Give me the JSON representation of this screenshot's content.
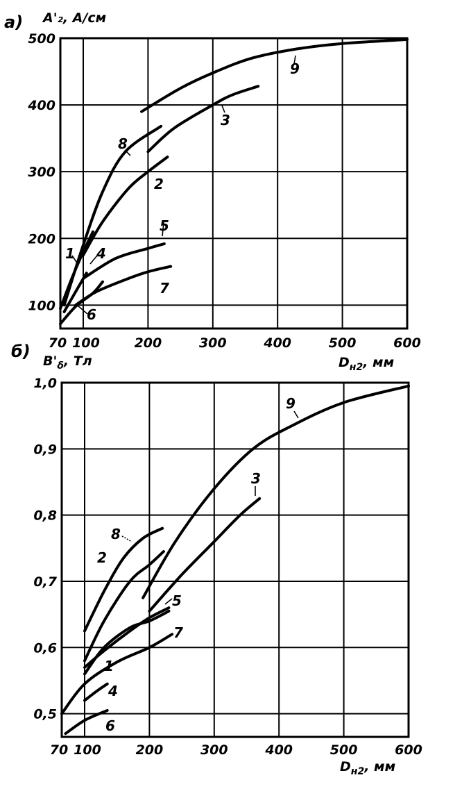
{
  "chart_data": [
    {
      "type": "line",
      "panel_label": "а)",
      "ylabel": "A'₂, А/см",
      "xlabel": "D_н2, мм",
      "xlim": [
        70,
        600
      ],
      "ylim": [
        65,
        500
      ],
      "x_ticks": [
        "70",
        "100",
        "200",
        "300",
        "400",
        "500",
        "600"
      ],
      "x_tick_values": [
        70,
        100,
        200,
        300,
        400,
        500,
        600
      ],
      "y_ticks": [
        "100",
        "200",
        "300",
        "400",
        "500"
      ],
      "y_tick_values": [
        100,
        200,
        300,
        400,
        500
      ],
      "grid": true,
      "series": [
        {
          "name": "1",
          "points": [
            [
              70,
              95
            ],
            [
              85,
              140
            ],
            [
              100,
              180
            ],
            [
              115,
              210
            ]
          ]
        },
        {
          "name": "2",
          "points": [
            [
              100,
              175
            ],
            [
              130,
              225
            ],
            [
              170,
              275
            ],
            [
              200,
              300
            ],
            [
              230,
              322
            ]
          ]
        },
        {
          "name": "3",
          "points": [
            [
              200,
              330
            ],
            [
              240,
              365
            ],
            [
              300,
              400
            ],
            [
              330,
              415
            ],
            [
              370,
              428
            ]
          ]
        },
        {
          "name": "4",
          "points": [
            [
              75,
              90
            ],
            [
              90,
              120
            ],
            [
              105,
              148
            ]
          ]
        },
        {
          "name": "5",
          "points": [
            [
              100,
              140
            ],
            [
              150,
              170
            ],
            [
              200,
              185
            ],
            [
              225,
              192
            ]
          ]
        },
        {
          "name": "6",
          "points": [
            [
              70,
              72
            ],
            [
              90,
              98
            ],
            [
              115,
              118
            ],
            [
              130,
              135
            ]
          ]
        },
        {
          "name": "7",
          "points": [
            [
              90,
              100
            ],
            [
              120,
              120
            ],
            [
              170,
              140
            ],
            [
              200,
              150
            ],
            [
              235,
              158
            ]
          ]
        },
        {
          "name": "8",
          "points": [
            [
              75,
              100
            ],
            [
              100,
              190
            ],
            [
              130,
              270
            ],
            [
              165,
              330
            ],
            [
              220,
              368
            ]
          ]
        },
        {
          "name": "9",
          "points": [
            [
              190,
              390
            ],
            [
              250,
              425
            ],
            [
              300,
              448
            ],
            [
              360,
              470
            ],
            [
              430,
              484
            ],
            [
              500,
              492
            ],
            [
              600,
              498
            ]
          ]
        }
      ],
      "annotations": [
        "1",
        "2",
        "3",
        "4",
        "5",
        "6",
        "7",
        "8",
        "9"
      ]
    },
    {
      "type": "line",
      "panel_label": "б)",
      "ylabel": "B'δ, Тл",
      "xlabel": "D_н2, мм",
      "xlim": [
        70,
        600
      ],
      "ylim": [
        0.465,
        1.0
      ],
      "x_ticks": [
        "70",
        "100",
        "200",
        "300",
        "400",
        "500",
        "600"
      ],
      "x_tick_values": [
        70,
        100,
        200,
        300,
        400,
        500,
        600
      ],
      "y_ticks": [
        "0,5",
        "0,6",
        "0,7",
        "0,8",
        "0,9",
        "1,0"
      ],
      "y_tick_values": [
        0.5,
        0.6,
        0.7,
        0.8,
        0.9,
        1.0
      ],
      "grid": true,
      "series": [
        {
          "name": "1",
          "points": [
            [
              100,
              0.57
            ],
            [
              130,
              0.595
            ],
            [
              170,
              0.625
            ],
            [
              200,
              0.645
            ],
            [
              230,
              0.66
            ]
          ]
        },
        {
          "name": "2",
          "points": [
            [
              100,
              0.58
            ],
            [
              130,
              0.64
            ],
            [
              170,
              0.7
            ],
            [
              200,
              0.725
            ],
            [
              222,
              0.745
            ]
          ]
        },
        {
          "name": "3",
          "points": [
            [
              200,
              0.655
            ],
            [
              250,
              0.71
            ],
            [
              300,
              0.76
            ],
            [
              340,
              0.8
            ],
            [
              370,
              0.825
            ]
          ]
        },
        {
          "name": "4",
          "points": [
            [
              100,
              0.52
            ],
            [
              120,
              0.535
            ],
            [
              135,
              0.545
            ]
          ]
        },
        {
          "name": "5",
          "points": [
            [
              100,
              0.56
            ],
            [
              130,
              0.6
            ],
            [
              170,
              0.63
            ],
            [
              200,
              0.64
            ],
            [
              230,
              0.655
            ]
          ]
        },
        {
          "name": "6",
          "points": [
            [
              75,
              0.47
            ],
            [
              100,
              0.49
            ],
            [
              135,
              0.505
            ]
          ]
        },
        {
          "name": "7",
          "points": [
            [
              70,
              0.5
            ],
            [
              100,
              0.545
            ],
            [
              150,
              0.578
            ],
            [
              200,
              0.6
            ],
            [
              235,
              0.62
            ]
          ]
        },
        {
          "name": "8",
          "points": [
            [
              100,
              0.625
            ],
            [
              130,
              0.685
            ],
            [
              160,
              0.735
            ],
            [
              190,
              0.765
            ],
            [
              220,
              0.78
            ]
          ]
        },
        {
          "name": "9",
          "points": [
            [
              190,
              0.675
            ],
            [
              240,
              0.76
            ],
            [
              300,
              0.84
            ],
            [
              360,
              0.9
            ],
            [
              420,
              0.935
            ],
            [
              500,
              0.97
            ],
            [
              600,
              0.995
            ]
          ]
        }
      ],
      "annotations": [
        "1",
        "2",
        "3",
        "4",
        "5",
        "6",
        "7",
        "8",
        "9"
      ]
    }
  ],
  "panel_a": {
    "label": "а)",
    "ylabel": "A'₂, А/см",
    "xlabel": "D",
    "xlabel_sub": "н2",
    "xlabel_unit": ", мм",
    "y_ticks": [
      "100",
      "200",
      "300",
      "400",
      "500"
    ],
    "x_ticks": [
      "70",
      "100",
      "200",
      "300",
      "400",
      "500",
      "600"
    ],
    "curve_labels": [
      "1",
      "2",
      "3",
      "4",
      "5",
      "6",
      "7",
      "8",
      "9"
    ]
  },
  "panel_b": {
    "label": "б)",
    "ylabel_main": "B'",
    "ylabel_sub": "δ",
    "ylabel_unit": ", Тл",
    "xlabel": "D",
    "xlabel_sub": "н2",
    "xlabel_unit": ", мм",
    "y_ticks": [
      "0,5",
      "0,6",
      "0,7",
      "0,8",
      "0,9",
      "1,0"
    ],
    "x_ticks": [
      "70",
      "100",
      "200",
      "300",
      "400",
      "500",
      "600"
    ],
    "curve_labels": [
      "1",
      "2",
      "3",
      "4",
      "5",
      "6",
      "7",
      "8",
      "9"
    ]
  }
}
